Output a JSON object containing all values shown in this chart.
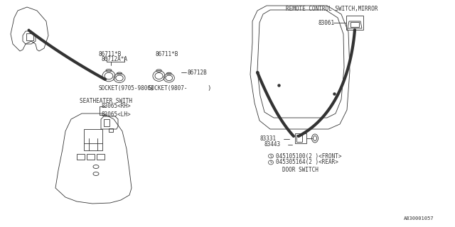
{
  "bg_color": "#ffffff",
  "lc": "#333333",
  "tlw": 0.6,
  "thklw": 3.0,
  "fs": 5.5,
  "labels": {
    "remote_control": "REMOTE CONTROL SWITCH,MIRROR",
    "socket_9705": "SOCKET(9705-9806)",
    "socket_9807": "SOCKET(9807-",
    "seatheater": "SEATHEATER SWITH",
    "door_switch": "DOOR SWITCH",
    "p86711B_1": "86711*B",
    "p86711B_2": "86711*B",
    "p86712A": "86712A*A",
    "p86712B": "86712B",
    "p83061": "83061",
    "p83065rh": "83065<RH>",
    "p83065lh": "83065<LH>",
    "p83331": "83331",
    "p83443": "83443",
    "screw1": "S 045105100(2 )<FRONT>",
    "screw2": "S 045305164(2 )<REAR>",
    "ref": "A830001057",
    "gt": ")"
  }
}
